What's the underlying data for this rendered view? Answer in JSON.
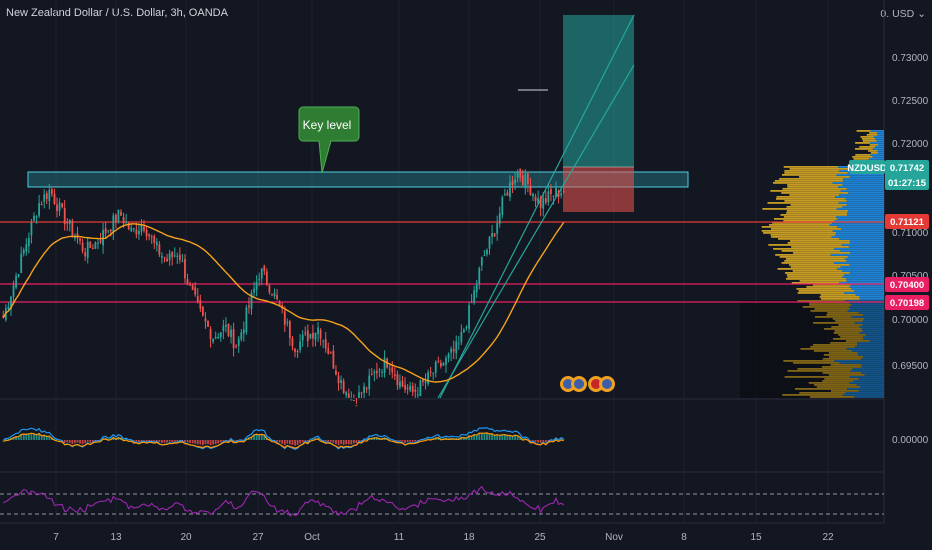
{
  "header": {
    "title": "New Zealand Dollar / U.S. Dollar, 3h, OANDA",
    "currency": "USD"
  },
  "annotations": {
    "callout": "Key level"
  },
  "price_axis": {
    "ticks": [
      "0.73000",
      "0.72500",
      "0.72000",
      "0.71000",
      "0.70500",
      "0.70000",
      "0.69500"
    ],
    "oscillator_tick": "0.00000"
  },
  "badges": {
    "symbol": "NZDUSD",
    "price": "0.71742",
    "countdown": "01:27:15",
    "level1": "0.71121",
    "level2": "0.70400",
    "level3": "0.70198"
  },
  "time_axis": {
    "labels": [
      "7",
      "13",
      "20",
      "27",
      "Oct",
      "11",
      "18",
      "25",
      "Nov",
      "8",
      "15",
      "22"
    ]
  },
  "colors": {
    "background": "#131722",
    "up": "#26a69a",
    "down": "#ef5350",
    "ma": "#f7a21b",
    "zone": "#2a9aa6",
    "resistance": "#e53935",
    "support": "#e91e63",
    "profile_buy": "#2196f3",
    "profile_sell": "#e6b422",
    "rsi": "#9c27b0"
  },
  "chart_data": {
    "type": "candlestick",
    "symbol": "NZDUSD",
    "interval": "3h",
    "source": "OANDA",
    "ylim": [
      0.6945,
      0.735
    ],
    "close_approx": [
      0.703,
      0.707,
      0.711,
      0.715,
      0.7165,
      0.714,
      0.712,
      0.71,
      0.711,
      0.7125,
      0.714,
      0.712,
      0.713,
      0.7105,
      0.709,
      0.71,
      0.706,
      0.703,
      0.701,
      0.702,
      0.7,
      0.704,
      0.708,
      0.706,
      0.703,
      0.7,
      0.701,
      0.702,
      0.699,
      0.696,
      0.694,
      0.6955,
      0.6975,
      0.6985,
      0.696,
      0.695,
      0.696,
      0.6975,
      0.6985,
      0.7,
      0.704,
      0.709,
      0.712,
      0.716,
      0.7185,
      0.717,
      0.715,
      0.716,
      0.7165
    ],
    "last_price": 0.71742,
    "key_levels": [
      0.71121,
      0.704,
      0.70198
    ],
    "resistance_zone": [
      0.7163,
      0.7178
    ]
  }
}
